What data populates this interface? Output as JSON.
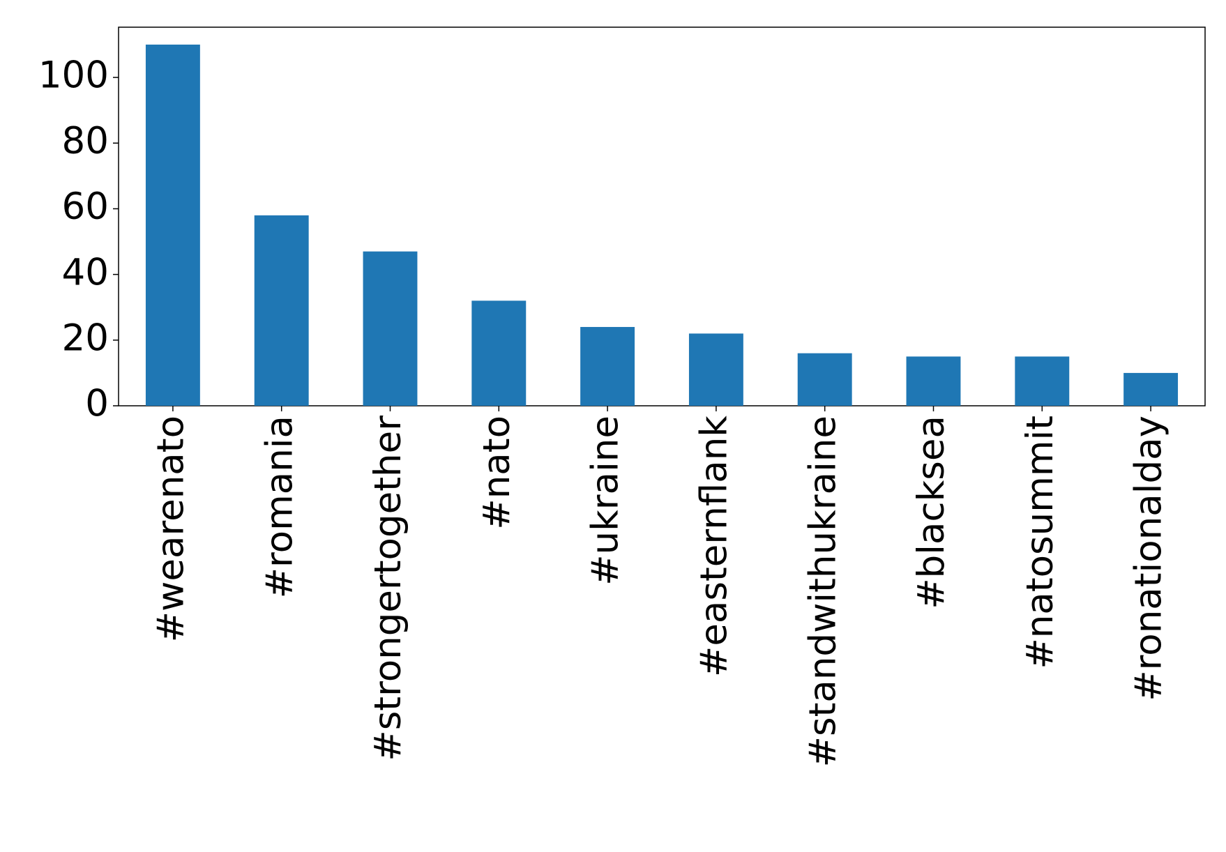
{
  "chart_data": {
    "type": "bar",
    "categories": [
      "#wearenato",
      "#romania",
      "#strongertogether",
      "#nato",
      "#ukraine",
      "#easternflank",
      "#standwithukraine",
      "#blacksea",
      "#natosummit",
      "#ronationalday"
    ],
    "values": [
      110,
      58,
      47,
      32,
      24,
      22,
      16,
      15,
      15,
      10
    ],
    "color": "#1f77b4",
    "ylim": [
      0,
      115.3
    ],
    "yticks": [
      0,
      20,
      40,
      60,
      80,
      100
    ],
    "grid": false
  }
}
